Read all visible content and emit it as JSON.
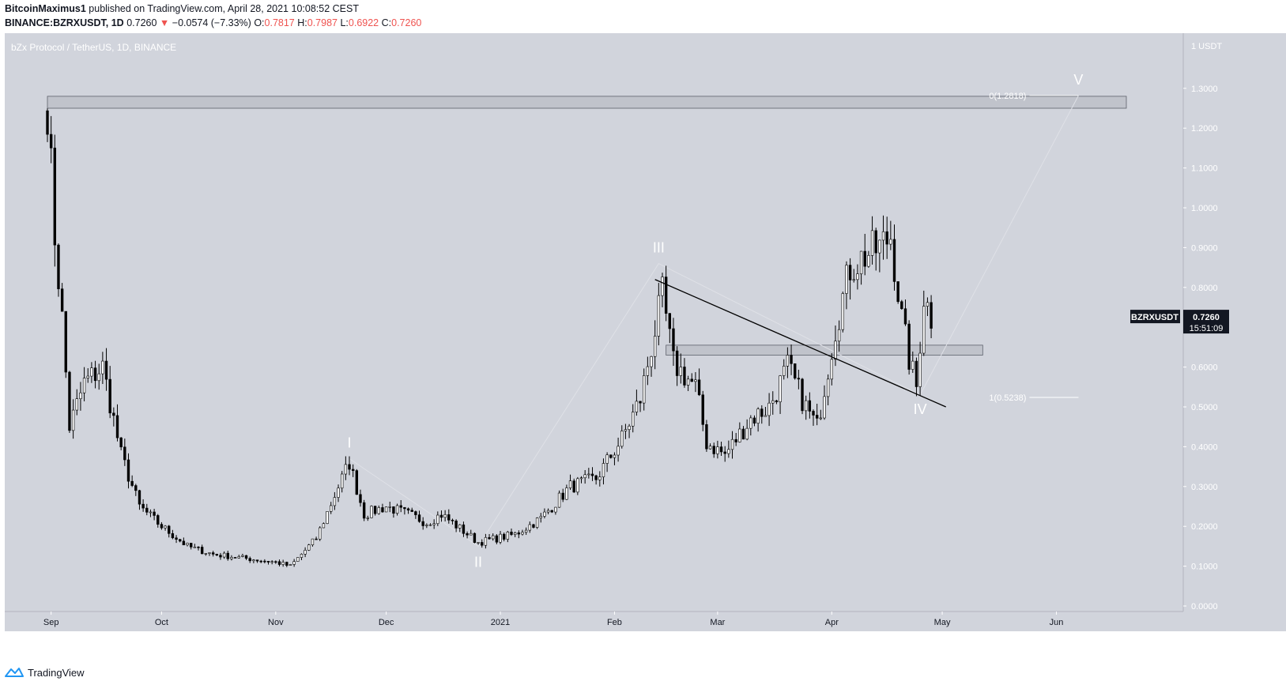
{
  "header": {
    "author": "BitcoinMaximus1",
    "published": "published on TradingView.com, April 28, 2021 10:08:52 CEST",
    "symbol_line": "BINANCE:BZRXUSDT, 1D",
    "last": "0.7260",
    "change_arrow": "▼",
    "change": "−0.0574 (−7.33%)",
    "o_label": "O:",
    "o_val": "0.7817",
    "h_label": "H:",
    "h_val": "0.7987",
    "l_label": "L:",
    "l_val": "0.6922",
    "c_label": "C:",
    "c_val": "0.7260"
  },
  "chart_title": "bZx Protocol / TetherUS, 1D, BINANCE",
  "price_scale": {
    "unit_label": "1 USDT",
    "ticks": [
      "1.3000",
      "1.2000",
      "1.1000",
      "1.0000",
      "0.9000",
      "0.8000",
      "0.7000",
      "0.6000",
      "0.5000",
      "0.4000",
      "0.3000",
      "0.2000",
      "0.1000",
      "0.0000"
    ],
    "current_symbol": "BZRXUSDT",
    "current_price": "0.7260",
    "countdown": "15:51:09"
  },
  "time_axis": {
    "labels": [
      "Sep",
      "Oct",
      "Nov",
      "Dec",
      "2021",
      "Feb",
      "Mar",
      "Apr",
      "May",
      "Jun"
    ]
  },
  "fib_labels": {
    "top": "0(1.2818)",
    "bottom": "1(0.5238)"
  },
  "wave_labels": [
    "I",
    "II",
    "III",
    "IV",
    "V"
  ],
  "footer": {
    "brand": "TradingView"
  },
  "colors": {
    "background": "#d1d4dc",
    "candle_up": "#ffffff",
    "candle_down": "#000000",
    "wick": "#000000",
    "zone_fill": "#b2b5be",
    "accent_red": "#ef5350",
    "trendline": "#000000",
    "wave_label": "#ffffff"
  },
  "chart_data": {
    "type": "candlestick",
    "title": "bZx Protocol / TetherUS, 1D, BINANCE",
    "x_axis": [
      "Sep",
      "Oct",
      "Nov",
      "Dec",
      "2021",
      "Feb",
      "Mar",
      "Apr",
      "May",
      "Jun"
    ],
    "y_range": [
      0,
      1.4
    ],
    "current_close": 0.726,
    "horizontal_zones": [
      {
        "from_date": "2020-08-31",
        "to_date": "2021-06-20",
        "low": 1.25,
        "high": 1.28
      },
      {
        "from_date": "2021-02-15",
        "to_date": "2021-05-12",
        "low": 0.63,
        "high": 0.655
      }
    ],
    "fib_levels": [
      {
        "label": "0(1.2818)",
        "value": 1.2818
      },
      {
        "label": "1(0.5238)",
        "value": 0.5238
      }
    ],
    "trendline": {
      "from": [
        "2021-02-12",
        0.82
      ],
      "to": [
        "2021-05-02",
        0.5
      ]
    },
    "wave_points": [
      {
        "label": "I",
        "date": "2020-11-21",
        "price": 0.37
      },
      {
        "label": "II",
        "date": "2020-12-26",
        "price": 0.15
      },
      {
        "label": "III",
        "date": "2021-02-13",
        "price": 0.86
      },
      {
        "label": "IV",
        "date": "2021-04-25",
        "price": 0.53
      },
      {
        "label": "V",
        "date": "2021-06-07",
        "price": 1.2818
      }
    ],
    "anchor_closes": [
      [
        "2020-08-31",
        1.26
      ],
      [
        "2020-09-02",
        0.93
      ],
      [
        "2020-09-04",
        0.72
      ],
      [
        "2020-09-06",
        0.45
      ],
      [
        "2020-09-10",
        0.56
      ],
      [
        "2020-09-15",
        0.6
      ],
      [
        "2020-09-20",
        0.38
      ],
      [
        "2020-09-25",
        0.25
      ],
      [
        "2020-10-01",
        0.2
      ],
      [
        "2020-10-08",
        0.15
      ],
      [
        "2020-10-15",
        0.13
      ],
      [
        "2020-11-01",
        0.11
      ],
      [
        "2020-11-05",
        0.1
      ],
      [
        "2020-11-12",
        0.17
      ],
      [
        "2020-11-18",
        0.3
      ],
      [
        "2020-11-21",
        0.36
      ],
      [
        "2020-11-25",
        0.23
      ],
      [
        "2020-12-01",
        0.25
      ],
      [
        "2020-12-07",
        0.23
      ],
      [
        "2020-12-12",
        0.21
      ],
      [
        "2020-12-16",
        0.23
      ],
      [
        "2020-12-26",
        0.16
      ],
      [
        "2021-01-05",
        0.18
      ],
      [
        "2021-01-12",
        0.22
      ],
      [
        "2021-01-20",
        0.3
      ],
      [
        "2021-01-27",
        0.32
      ],
      [
        "2021-02-03",
        0.42
      ],
      [
        "2021-02-08",
        0.52
      ],
      [
        "2021-02-11",
        0.65
      ],
      [
        "2021-02-14",
        0.78
      ],
      [
        "2021-02-17",
        0.61
      ],
      [
        "2021-02-23",
        0.55
      ],
      [
        "2021-02-26",
        0.41
      ],
      [
        "2021-03-03",
        0.38
      ],
      [
        "2021-03-10",
        0.47
      ],
      [
        "2021-03-15",
        0.5
      ],
      [
        "2021-03-20",
        0.6
      ],
      [
        "2021-03-25",
        0.5
      ],
      [
        "2021-03-28",
        0.45
      ],
      [
        "2021-04-02",
        0.7
      ],
      [
        "2021-04-06",
        0.85
      ],
      [
        "2021-04-10",
        0.88
      ],
      [
        "2021-04-14",
        0.9
      ],
      [
        "2021-04-17",
        0.93
      ],
      [
        "2021-04-20",
        0.72
      ],
      [
        "2021-04-22",
        0.62
      ],
      [
        "2021-04-24",
        0.55
      ],
      [
        "2021-04-26",
        0.78
      ],
      [
        "2021-04-28",
        0.726
      ]
    ]
  }
}
